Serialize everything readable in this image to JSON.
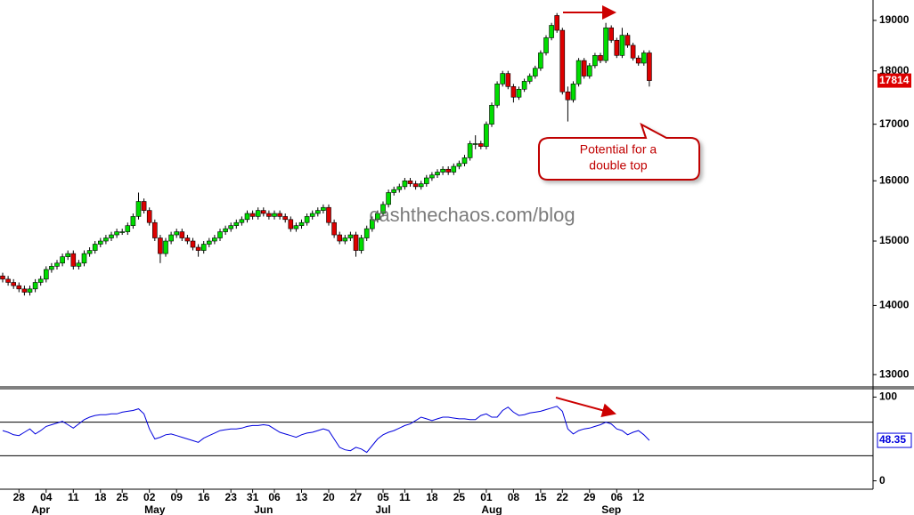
{
  "chart_data": {
    "type": "candlestick",
    "categories": [
      null,
      null,
      null,
      "28",
      null,
      null,
      null,
      null,
      "04",
      null,
      null,
      null,
      null,
      "11",
      null,
      null,
      null,
      null,
      "18",
      null,
      null,
      null,
      "25",
      null,
      null,
      null,
      null,
      "02",
      null,
      null,
      null,
      null,
      "09",
      null,
      null,
      null,
      null,
      "16",
      null,
      null,
      null,
      null,
      "23",
      null,
      null,
      null,
      "31",
      null,
      null,
      null,
      "06",
      null,
      null,
      null,
      null,
      "13",
      null,
      null,
      null,
      null,
      "20",
      null,
      null,
      null,
      null,
      "27",
      null,
      null,
      null,
      null,
      "05",
      null,
      null,
      null,
      "11",
      null,
      null,
      null,
      null,
      "18",
      null,
      null,
      null,
      null,
      "25",
      null,
      null,
      null,
      null,
      "01",
      null,
      null,
      null,
      null,
      "08",
      null,
      null,
      null,
      null,
      "15",
      null,
      null,
      null,
      "22",
      null,
      null,
      null,
      null,
      "29",
      null,
      null,
      null,
      null,
      "06",
      null,
      null,
      null,
      "12",
      null,
      null
    ],
    "month_labels": [
      null,
      null,
      null,
      null,
      null,
      null,
      null,
      "Apr",
      null,
      null,
      null,
      null,
      null,
      null,
      null,
      null,
      null,
      null,
      null,
      null,
      null,
      null,
      null,
      null,
      null,
      null,
      null,
      null,
      "May",
      null,
      null,
      null,
      null,
      null,
      null,
      null,
      null,
      null,
      null,
      null,
      null,
      null,
      null,
      null,
      null,
      null,
      null,
      null,
      "Jun",
      null,
      null,
      null,
      null,
      null,
      null,
      null,
      null,
      null,
      null,
      null,
      null,
      null,
      null,
      null,
      null,
      null,
      null,
      null,
      null,
      null,
      "Jul",
      null,
      null,
      null,
      null,
      null,
      null,
      null,
      null,
      null,
      null,
      null,
      null,
      null,
      null,
      null,
      null,
      null,
      null,
      null,
      "Aug",
      null,
      null,
      null,
      null,
      null,
      null,
      null,
      null,
      null,
      null,
      null,
      null,
      null,
      null,
      null,
      null,
      null,
      null,
      null,
      null,
      null,
      "Sep",
      null,
      null,
      null,
      null,
      null,
      null,
      null
    ],
    "open": [
      14450,
      14400,
      14350,
      14300,
      14250,
      14200,
      14250,
      14350,
      14400,
      14550,
      14600,
      14650,
      14750,
      14800,
      14600,
      14650,
      14800,
      14850,
      14950,
      15000,
      15050,
      15100,
      15150,
      15150,
      15250,
      15400,
      15650,
      15500,
      15300,
      15050,
      14800,
      15000,
      15100,
      15150,
      15050,
      15000,
      14900,
      14850,
      14950,
      15000,
      15050,
      15150,
      15200,
      15250,
      15300,
      15350,
      15450,
      15400,
      15500,
      15450,
      15400,
      15450,
      15400,
      15350,
      15200,
      15250,
      15300,
      15400,
      15450,
      15500,
      15550,
      15300,
      15100,
      15000,
      15050,
      15100,
      14850,
      15050,
      15200,
      15350,
      15450,
      15600,
      15800,
      15850,
      15900,
      16000,
      15950,
      15900,
      15950,
      16050,
      16100,
      16150,
      16200,
      16150,
      16250,
      16300,
      16400,
      16650,
      16650,
      16600,
      17000,
      17350,
      17750,
      17950,
      17700,
      17500,
      17650,
      17800,
      17900,
      18050,
      18350,
      18650,
      19100,
      18800,
      17600,
      17450,
      17750,
      18200,
      17900,
      18100,
      18300,
      18200,
      18850,
      18600,
      18300,
      18700,
      18500,
      18250,
      18150,
      18350
    ],
    "high": [
      14500,
      14450,
      14400,
      14350,
      14300,
      14300,
      14400,
      14450,
      14600,
      14650,
      14700,
      14800,
      14850,
      14850,
      14700,
      14850,
      14900,
      15000,
      15050,
      15100,
      15150,
      15200,
      15200,
      15300,
      15450,
      15800,
      15700,
      15550,
      15350,
      15100,
      15050,
      15150,
      15200,
      15200,
      15100,
      15050,
      14950,
      15000,
      15050,
      15100,
      15200,
      15250,
      15300,
      15350,
      15400,
      15500,
      15500,
      15550,
      15550,
      15500,
      15500,
      15500,
      15450,
      15400,
      15300,
      15350,
      15450,
      15500,
      15550,
      15600,
      15600,
      15350,
      15150,
      15100,
      15150,
      15150,
      15100,
      15250,
      15400,
      15500,
      15650,
      15850,
      15900,
      15950,
      16050,
      16050,
      16000,
      16000,
      16100,
      16150,
      16200,
      16250,
      16250,
      16300,
      16350,
      16450,
      16700,
      16800,
      16700,
      17050,
      17400,
      17800,
      18000,
      18000,
      17750,
      17700,
      17850,
      17950,
      18100,
      18400,
      18700,
      18950,
      19150,
      18850,
      17700,
      17800,
      18250,
      18250,
      18150,
      18350,
      18350,
      18950,
      18900,
      18650,
      18850,
      18750,
      18550,
      18300,
      18400,
      18400
    ],
    "low": [
      14350,
      14300,
      14250,
      14200,
      14150,
      14150,
      14200,
      14300,
      14350,
      14500,
      14550,
      14600,
      14700,
      14550,
      14550,
      14600,
      14750,
      14800,
      14900,
      14950,
      15000,
      15050,
      15100,
      15100,
      15200,
      15350,
      15450,
      15250,
      15000,
      14650,
      14750,
      14950,
      15050,
      15000,
      14950,
      14850,
      14750,
      14800,
      14900,
      14950,
      15000,
      15100,
      15150,
      15200,
      15250,
      15300,
      15350,
      15350,
      15400,
      15350,
      15350,
      15350,
      15300,
      15150,
      15150,
      15200,
      15250,
      15350,
      15400,
      15450,
      15250,
      15050,
      14950,
      14950,
      15000,
      14750,
      14800,
      15000,
      15150,
      15300,
      15400,
      15550,
      15750,
      15800,
      15850,
      15900,
      15850,
      15850,
      15900,
      16000,
      16050,
      16100,
      16100,
      16100,
      16200,
      16250,
      16350,
      16550,
      16550,
      16550,
      16950,
      17300,
      17700,
      17650,
      17400,
      17450,
      17600,
      17750,
      17850,
      18000,
      18300,
      18600,
      18750,
      17550,
      17050,
      17400,
      17700,
      17850,
      17850,
      18050,
      18150,
      18150,
      18550,
      18250,
      18250,
      18450,
      18200,
      18100,
      18100,
      17700
    ],
    "close": [
      14400,
      14350,
      14300,
      14250,
      14200,
      14250,
      14350,
      14400,
      14550,
      14600,
      14650,
      14750,
      14800,
      14600,
      14650,
      14800,
      14850,
      14950,
      15000,
      15050,
      15100,
      15150,
      15150,
      15250,
      15400,
      15650,
      15500,
      15300,
      15050,
      14800,
      15000,
      15100,
      15150,
      15050,
      15000,
      14900,
      14850,
      14950,
      15000,
      15050,
      15150,
      15200,
      15250,
      15300,
      15350,
      15450,
      15400,
      15500,
      15450,
      15400,
      15450,
      15400,
      15350,
      15200,
      15250,
      15300,
      15400,
      15450,
      15500,
      15550,
      15300,
      15100,
      15000,
      15050,
      15100,
      14850,
      15050,
      15200,
      15350,
      15450,
      15600,
      15800,
      15850,
      15900,
      16000,
      15950,
      15900,
      15950,
      16050,
      16100,
      16150,
      16200,
      16150,
      16250,
      16300,
      16400,
      16650,
      16650,
      16600,
      17000,
      17350,
      17750,
      17950,
      17700,
      17500,
      17650,
      17800,
      17900,
      18050,
      18350,
      18650,
      18900,
      18800,
      17600,
      17450,
      17750,
      18200,
      17900,
      18100,
      18300,
      18200,
      18850,
      18600,
      18300,
      18700,
      18500,
      18250,
      18150,
      18350,
      17814
    ],
    "up_color": "#00dd00",
    "down_color": "#dd0000",
    "ylim": [
      12830,
      19420
    ],
    "yticks": [
      13000,
      14000,
      15000,
      16000,
      17000,
      18000,
      19000
    ],
    "log_scale": true,
    "watermark": "cashthechaos.com/blog",
    "annotation": [
      "Potential for a",
      "double top"
    ],
    "rsi": {
      "type": "line",
      "color": "#0000dd",
      "values": [
        60,
        58,
        55,
        54,
        58,
        62,
        56,
        60,
        65,
        67,
        69,
        71,
        67,
        63,
        68,
        73,
        76,
        78,
        79,
        79,
        80,
        80,
        82,
        83,
        84,
        86,
        80,
        62,
        50,
        52,
        55,
        56,
        54,
        52,
        50,
        48,
        46,
        51,
        54,
        57,
        60,
        61,
        62,
        62,
        63,
        65,
        66,
        66,
        67,
        66,
        62,
        58,
        56,
        54,
        52,
        55,
        57,
        58,
        60,
        62,
        60,
        50,
        40,
        37,
        36,
        40,
        38,
        34,
        42,
        50,
        55,
        58,
        60,
        63,
        66,
        68,
        72,
        76,
        74,
        72,
        74,
        76,
        76,
        75,
        74,
        74,
        73,
        73,
        78,
        80,
        76,
        76,
        84,
        88,
        82,
        78,
        79,
        81,
        82,
        83,
        85,
        87,
        89,
        83,
        62,
        56,
        60,
        62,
        63,
        65,
        67,
        70,
        68,
        62,
        60,
        55,
        58,
        60,
        55,
        48.35
      ],
      "ylim": [
        -10,
        110
      ],
      "yticks": [
        0,
        100
      ],
      "levels": [
        30,
        70
      ]
    }
  }
}
